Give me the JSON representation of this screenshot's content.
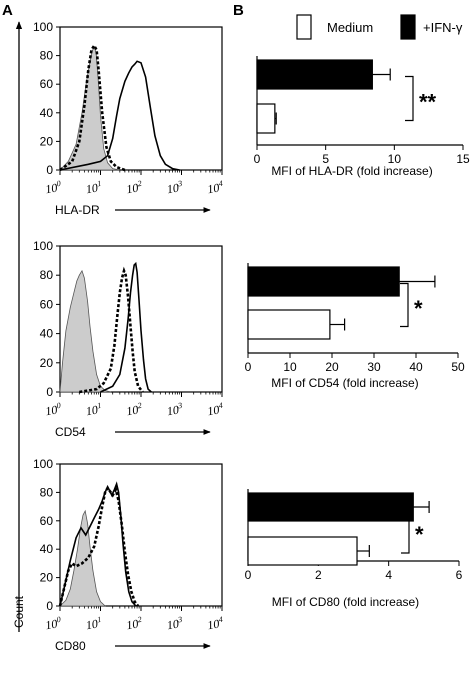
{
  "panels": {
    "a": "A",
    "b": "B"
  },
  "y_axis_label_left": "Count",
  "legend": {
    "medium": {
      "label": "Medium",
      "color": "#ffffff"
    },
    "ifn": {
      "label": "+IFN-γ",
      "color": "#000000"
    }
  },
  "histograms": [
    {
      "xlabel": "HLA-DR",
      "yticks": [
        "0",
        "20",
        "40",
        "60",
        "80",
        "100"
      ],
      "ylim": [
        0,
        100
      ],
      "xticks_exp": [
        "0",
        "1",
        "2",
        "3",
        "4"
      ],
      "xscale": "log",
      "xlim": [
        1,
        10000
      ]
    },
    {
      "xlabel": "CD54",
      "yticks": [
        "0",
        "20",
        "40",
        "60",
        "80",
        "100"
      ],
      "ylim": [
        0,
        100
      ],
      "xticks_exp": [
        "0",
        "1",
        "2",
        "3",
        "4"
      ],
      "xscale": "log",
      "xlim": [
        1,
        10000
      ]
    },
    {
      "xlabel": "CD80",
      "yticks": [
        "0",
        "20",
        "40",
        "60",
        "80",
        "100"
      ],
      "ylim": [
        0,
        100
      ],
      "xticks_exp": [
        "0",
        "1",
        "2",
        "3",
        "4"
      ],
      "xscale": "log",
      "xlim": [
        1,
        10000
      ]
    }
  ],
  "chart_data": [
    {
      "type": "bar",
      "orientation": "horizontal",
      "xlabel": "MFI of HLA-DR (fold increase)",
      "xlim": [
        0,
        15
      ],
      "xticks": [
        "0",
        "5",
        "10",
        "15"
      ],
      "series": [
        {
          "name": "+IFN-γ",
          "value": 8.4,
          "error": 1.3
        },
        {
          "name": "Medium",
          "value": 1.3,
          "error": 0.1
        }
      ],
      "significance": "**"
    },
    {
      "type": "bar",
      "orientation": "horizontal",
      "xlabel": "MFI of CD54 (fold increase)",
      "xlim": [
        0,
        50
      ],
      "xticks": [
        "0",
        "10",
        "20",
        "30",
        "40",
        "50"
      ],
      "series": [
        {
          "name": "+IFN-γ",
          "value": 36,
          "error": 8.5
        },
        {
          "name": "Medium",
          "value": 19.5,
          "error": 3.5
        }
      ],
      "significance": "*"
    },
    {
      "type": "bar",
      "orientation": "horizontal",
      "xlabel": "MFI of CD80 (fold increase)",
      "xlim": [
        0,
        6
      ],
      "xticks": [
        "0",
        "2",
        "4",
        "6"
      ],
      "series": [
        {
          "name": "+IFN-γ",
          "value": 4.7,
          "error": 0.45
        },
        {
          "name": "Medium",
          "value": 3.1,
          "error": 0.35
        }
      ],
      "significance": "*"
    }
  ]
}
